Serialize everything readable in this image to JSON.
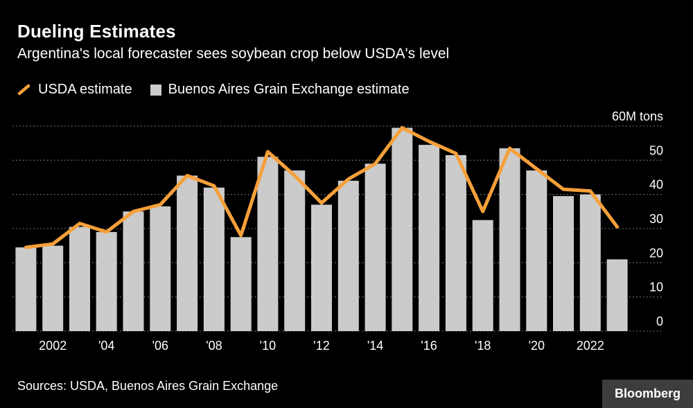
{
  "header": {
    "title": "Dueling Estimates",
    "subtitle": "Argentina's local forecaster sees soybean crop below USDA's level"
  },
  "legend": {
    "items": [
      {
        "label": "USDA estimate",
        "swatch": "diagonal-line",
        "color": "#f6a03a"
      },
      {
        "label": "Buenos Aires Grain Exchange estimate",
        "swatch": "square",
        "color": "#cbcbcb"
      }
    ]
  },
  "footer": {
    "source": "Sources: USDA, Buenos Aires Grain Exchange",
    "brand": "Bloomberg"
  },
  "chart_data": {
    "type": "bar",
    "title": "Dueling Estimates",
    "subtitle": "Argentina's local forecaster sees soybean crop below USDA's level",
    "x": [
      2001,
      2002,
      2003,
      2004,
      2005,
      2006,
      2007,
      2008,
      2009,
      2010,
      2011,
      2012,
      2013,
      2014,
      2015,
      2016,
      2017,
      2018,
      2019,
      2020,
      2021,
      2022,
      2023
    ],
    "x_ticks": [
      {
        "year": 2002,
        "label": "2002"
      },
      {
        "year": 2004,
        "label": "'04"
      },
      {
        "year": 2006,
        "label": "'06"
      },
      {
        "year": 2008,
        "label": "'08"
      },
      {
        "year": 2010,
        "label": "'10"
      },
      {
        "year": 2012,
        "label": "'12"
      },
      {
        "year": 2014,
        "label": "'14"
      },
      {
        "year": 2016,
        "label": "'16"
      },
      {
        "year": 2018,
        "label": "'18"
      },
      {
        "year": 2020,
        "label": "'20"
      },
      {
        "year": 2022,
        "label": "2022"
      }
    ],
    "series": [
      {
        "name": "USDA estimate",
        "type": "line",
        "color": "#f6a03a",
        "values": [
          24.5,
          25.5,
          31.5,
          29,
          35,
          37,
          45.5,
          42.5,
          28,
          52.5,
          45.5,
          37.5,
          44.5,
          49,
          59.5,
          55.5,
          52,
          35,
          53.5,
          47.5,
          41.5,
          41,
          30.5
        ]
      },
      {
        "name": "Buenos Aires Grain Exchange estimate",
        "type": "bar",
        "color": "#cbcbcb",
        "values": [
          24.5,
          25,
          30.5,
          29,
          35,
          36.5,
          45.5,
          42,
          27.5,
          51,
          47,
          37,
          44,
          49,
          59.5,
          54.5,
          51.5,
          32.5,
          53.5,
          47,
          39.5,
          40,
          21
        ]
      }
    ],
    "xlabel": "",
    "ylabel": "M tons",
    "ylim": [
      0,
      60
    ],
    "ytick_interval": 10,
    "ytick_top_label": "60M tons",
    "grid": "dotted-horizontal",
    "grid_color": "#7a7a7a",
    "legend_position": "top-left"
  }
}
